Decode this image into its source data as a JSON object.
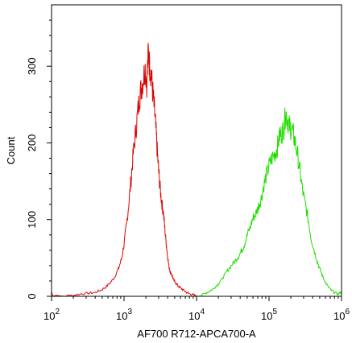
{
  "chart_data": {
    "type": "histogram",
    "xlabel": "AF700 R712-APCA700-A",
    "ylabel": "Count",
    "xscale": "log",
    "xlim": [
      100,
      1000000
    ],
    "ylim": [
      0,
      380
    ],
    "x_ticks": [
      {
        "value": 100,
        "base": "10",
        "exp": "2"
      },
      {
        "value": 1000,
        "base": "10",
        "exp": "3"
      },
      {
        "value": 10000,
        "base": "10",
        "exp": "4"
      },
      {
        "value": 100000,
        "base": "10",
        "exp": "5"
      },
      {
        "value": 1000000,
        "base": "10",
        "exp": "6"
      }
    ],
    "y_ticks": [
      {
        "value": 0,
        "label": "0"
      },
      {
        "value": 100,
        "label": "100"
      },
      {
        "value": 200,
        "label": "200"
      },
      {
        "value": 300,
        "label": "300"
      }
    ],
    "series": [
      {
        "color": "#e00000",
        "x": [
          100,
          105,
          190,
          250,
          320,
          400,
          480,
          560,
          650,
          740,
          830,
          920,
          1000,
          1080,
          1160,
          1250,
          1340,
          1440,
          1540,
          1640,
          1740,
          1850,
          1960,
          2060,
          2160,
          2260,
          2370,
          2480,
          2590,
          2710,
          2830,
          2960,
          3080,
          3220,
          3360,
          3500,
          3650,
          3810,
          3970,
          4150,
          4340,
          4560,
          4800,
          5100,
          5500,
          6000,
          6600,
          7300,
          8100,
          9000,
          10000
        ],
        "values": [
          6,
          0,
          1,
          3,
          4,
          5,
          8,
          12,
          18,
          25,
          35,
          48,
          68,
          92,
          120,
          152,
          186,
          212,
          238,
          262,
          272,
          285,
          298,
          278,
          318,
          300,
          290,
          268,
          248,
          228,
          198,
          172,
          150,
          132,
          118,
          108,
          88,
          70,
          54,
          40,
          32,
          28,
          22,
          18,
          14,
          11,
          8,
          5,
          3,
          2,
          0
        ]
      },
      {
        "color": "#22dd00",
        "x": [
          10000,
          12000,
          14000,
          16000,
          18000,
          20000,
          23000,
          26000,
          30000,
          34000,
          38000,
          42000,
          46000,
          50000,
          55000,
          60000,
          66000,
          72000,
          78000,
          85000,
          92000,
          100000,
          110000,
          120000,
          130000,
          140000,
          150000,
          160000,
          170000,
          180000,
          190000,
          200000,
          215000,
          230000,
          250000,
          270000,
          290000,
          320000,
          350000,
          380000,
          420000,
          460000,
          500000,
          550000,
          600000,
          660000,
          720000,
          800000,
          900000,
          1000000
        ],
        "values": [
          0,
          2,
          5,
          8,
          12,
          16,
          24,
          32,
          40,
          46,
          52,
          60,
          68,
          80,
          90,
          102,
          108,
          118,
          128,
          145,
          158,
          170,
          180,
          186,
          194,
          210,
          212,
          220,
          240,
          230,
          222,
          218,
          212,
          200,
          182,
          160,
          138,
          118,
          98,
          76,
          60,
          46,
          36,
          26,
          18,
          12,
          8,
          5,
          3,
          6
        ]
      }
    ]
  }
}
